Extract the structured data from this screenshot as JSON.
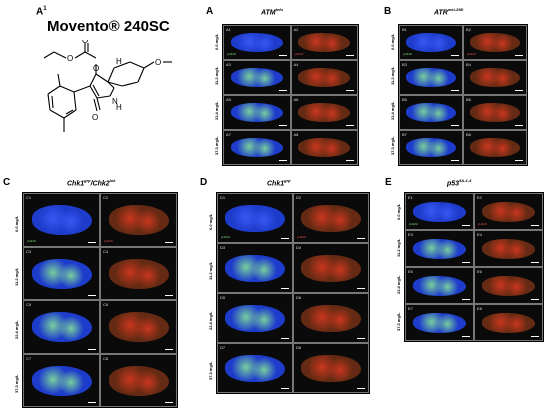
{
  "molecule": {
    "letter": "A",
    "sup": "1",
    "title": "Movento® 240SC",
    "atoms": [
      "O",
      "O",
      "O",
      "O",
      "H",
      "N",
      "H"
    ]
  },
  "panels": [
    {
      "letter": "A",
      "title": "ATM",
      "sup": "tefu",
      "labels": [
        "A1",
        "A2",
        "A3",
        "A4",
        "A5",
        "A6",
        "A7",
        "A8"
      ],
      "rows": [
        "0.0 mg/L",
        "11.2 mg/L",
        "22.4 mg/L",
        "37.3 mg/L"
      ],
      "stain": "γH2AV"
    },
    {
      "letter": "B",
      "title": "ATR",
      "sup": "mei-29D",
      "labels": [
        "B1",
        "B2",
        "B3",
        "B4",
        "B5",
        "B6",
        "B7",
        "B8"
      ],
      "rows": [
        "0.0 mg/L",
        "11.2 mg/L",
        "22.4 mg/L",
        "37.3 mg/L"
      ],
      "stain": "γH2AV"
    },
    {
      "letter": "C",
      "title": "Chk1",
      "sup": "grp",
      "title2": "/Chk2",
      "sup2": "lok",
      "labels": [
        "C1",
        "C2",
        "C3",
        "C4",
        "C5",
        "C6",
        "C7",
        "C8"
      ],
      "rows": [
        "0.0 mg/L",
        "11.2 mg/L",
        "22.4 mg/L",
        "37.3 mg/L"
      ],
      "stain": "γH2AV",
      "stain2": "γH2AV"
    },
    {
      "letter": "D",
      "title": "Chk1",
      "sup": "grp",
      "labels": [
        "D1",
        "D2",
        "D3",
        "D4",
        "D5",
        "D6",
        "D7",
        "D8"
      ],
      "rows": [
        "0.0 mg/L",
        "11.2 mg/L",
        "22.4 mg/L",
        "37.3 mg/L"
      ],
      "stain": "γH2AV"
    },
    {
      "letter": "E",
      "title": "p53",
      "sup": "5A-1-4",
      "labels": [
        "E1",
        "E2",
        "E3",
        "E4",
        "E5",
        "E6",
        "E7",
        "E8"
      ],
      "rows": [
        "0.0 mg/L",
        "11.2 mg/L",
        "22.4 mg/L",
        "37.3 mg/L"
      ],
      "stain": "γH2AV"
    }
  ],
  "colors": {
    "dapi": "#1f3fd6",
    "h2av_red": "#c8281e",
    "h2av_green": "#6cd26c",
    "bg": "#000000"
  }
}
